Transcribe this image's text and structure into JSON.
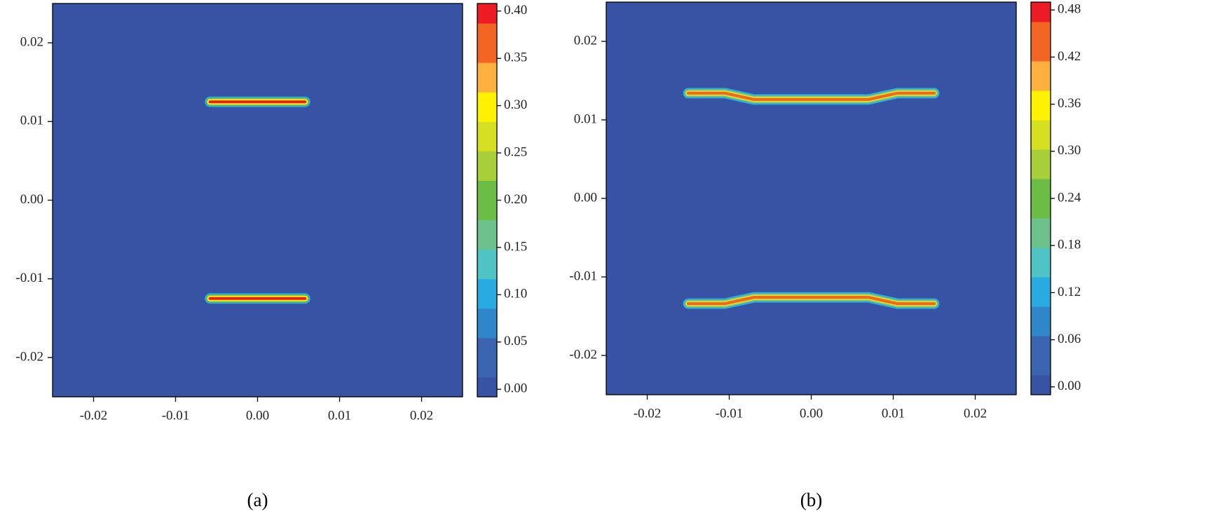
{
  "chart_data": [
    {
      "type": "contour",
      "caption": "(a)",
      "xlim": [
        -0.025,
        0.025
      ],
      "ylim": [
        -0.025,
        0.025
      ],
      "xticks": [
        -0.02,
        -0.01,
        {
          "value": 0,
          "label": "0.00"
        },
        0.01,
        0.02
      ],
      "yticks": [
        -0.02,
        -0.01,
        {
          "value": 0,
          "label": "0.00"
        },
        0.01,
        0.02
      ],
      "colorbar": {
        "lim": [
          -0.008,
          0.408
        ],
        "ticks": [
          {
            "value": 0,
            "label": "0.00"
          },
          0.05,
          {
            "value": 0.1,
            "label": "0.10"
          },
          0.15,
          {
            "value": 0.2,
            "label": "0.20"
          },
          0.25,
          {
            "value": 0.3,
            "label": "0.30"
          },
          0.35,
          {
            "value": 0.4,
            "label": "0.40"
          }
        ]
      },
      "colormap": [
        "#3953a4",
        "#3a64b0",
        "#2f86c8",
        "#29abe2",
        "#50c3c5",
        "#6dc28b",
        "#6cbd45",
        "#a6cf39",
        "#d7df23",
        "#fff200",
        "#fbb040",
        "#f26522",
        "#ed1c24"
      ],
      "series": [
        {
          "x": [
            -0.0058,
            0.0058
          ],
          "y": [
            0.0125,
            0.0125
          ],
          "peak": 0.4
        },
        {
          "x": [
            -0.0058,
            0.0058
          ],
          "y": [
            -0.0125,
            -0.0125
          ],
          "peak": 0.4
        }
      ]
    },
    {
      "type": "contour",
      "caption": "(b)",
      "xlim": [
        -0.025,
        0.025
      ],
      "ylim": [
        -0.025,
        0.025
      ],
      "xticks": [
        -0.02,
        -0.01,
        {
          "value": 0,
          "label": "0.00"
        },
        0.01,
        0.02
      ],
      "yticks": [
        -0.02,
        -0.01,
        {
          "value": 0,
          "label": "0.00"
        },
        0.01,
        0.02
      ],
      "colorbar": {
        "lim": [
          -0.01,
          0.49
        ],
        "ticks": [
          {
            "value": 0,
            "label": "0.00"
          },
          0.06,
          0.12,
          0.18,
          0.24,
          {
            "value": 0.3,
            "label": "0.30"
          },
          0.36,
          0.42,
          0.48
        ]
      },
      "colormap": [
        "#3953a4",
        "#3a64b0",
        "#2f86c8",
        "#29abe2",
        "#50c3c5",
        "#6dc28b",
        "#6cbd45",
        "#a6cf39",
        "#d7df23",
        "#fff200",
        "#fbb040",
        "#f26522",
        "#ed1c24"
      ],
      "series": [
        {
          "x": [
            -0.015,
            -0.0105,
            -0.007,
            0.007,
            0.0105,
            0.015
          ],
          "y": [
            0.0134,
            0.0134,
            0.0126,
            0.0126,
            0.0134,
            0.0134
          ],
          "peak": 0.42
        },
        {
          "x": [
            -0.015,
            -0.0105,
            -0.007,
            0.007,
            0.0105,
            0.015
          ],
          "y": [
            -0.0134,
            -0.0134,
            -0.0126,
            -0.0126,
            -0.0134,
            -0.0134
          ],
          "peak": 0.42
        }
      ]
    }
  ]
}
